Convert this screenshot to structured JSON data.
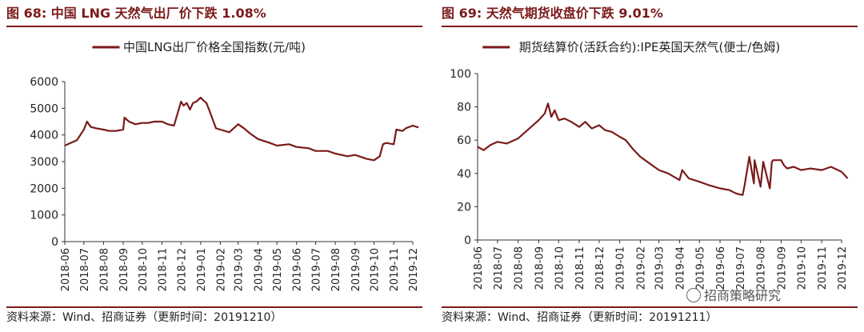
{
  "left": {
    "title": "图 68:  中国 LNG 天然气出厂价下跌 1.08%",
    "source": "资料来源：Wind、招商证券（更新时间：20191210）"
  },
  "right": {
    "title": "图 69:  天然气期货收盘价下跌 9.01%",
    "source": "资料来源：Wind、招商证券（更新时间：20191211）"
  },
  "watermark": {
    "text": "招商策略研究",
    "icon": "wechat-icon"
  },
  "chart_data": [
    {
      "type": "line",
      "legend": "中国LNG出厂价格全国指数(元/吨)",
      "legend_position": "top-center",
      "grid": false,
      "color": "#7b1a1a",
      "ylim": [
        0,
        6000
      ],
      "yticks": [
        0,
        1000,
        2000,
        3000,
        4000,
        5000,
        6000
      ],
      "xticks": [
        "2018-06",
        "2018-07",
        "2018-08",
        "2018-09",
        "2018-10",
        "2018-11",
        "2018-12",
        "2019-01",
        "2019-02",
        "2019-03",
        "2019-04",
        "2019-05",
        "2019-06",
        "2019-07",
        "2019-08",
        "2019-09",
        "2019-10",
        "2019-11",
        "2019-12"
      ],
      "x": [
        "2018-06-01",
        "2018-06-10",
        "2018-06-20",
        "2018-07-01",
        "2018-07-06",
        "2018-07-12",
        "2018-07-20",
        "2018-08-01",
        "2018-08-10",
        "2018-08-20",
        "2018-09-01",
        "2018-09-03",
        "2018-09-10",
        "2018-09-20",
        "2018-10-01",
        "2018-10-10",
        "2018-10-20",
        "2018-11-01",
        "2018-11-10",
        "2018-11-20",
        "2018-12-01",
        "2018-12-05",
        "2018-12-10",
        "2018-12-15",
        "2018-12-20",
        "2018-12-25",
        "2019-01-01",
        "2019-01-05",
        "2019-01-10",
        "2019-01-15",
        "2019-01-25",
        "2019-02-01",
        "2019-02-15",
        "2019-03-01",
        "2019-03-10",
        "2019-03-20",
        "2019-04-01",
        "2019-04-20",
        "2019-05-01",
        "2019-05-20",
        "2019-06-01",
        "2019-06-20",
        "2019-07-01",
        "2019-07-20",
        "2019-08-01",
        "2019-08-20",
        "2019-09-01",
        "2019-09-20",
        "2019-10-01",
        "2019-10-10",
        "2019-10-15",
        "2019-10-20",
        "2019-11-01",
        "2019-11-05",
        "2019-11-15",
        "2019-11-20",
        "2019-12-01",
        "2019-12-10"
      ],
      "series": [
        {
          "values": [
            3600,
            3700,
            3800,
            4200,
            4500,
            4300,
            4250,
            4200,
            4150,
            4150,
            4200,
            4650,
            4500,
            4400,
            4450,
            4450,
            4500,
            4500,
            4400,
            4350,
            5250,
            5100,
            5200,
            4950,
            5200,
            5250,
            5400,
            5300,
            5200,
            4900,
            4250,
            4200,
            4100,
            4400,
            4250,
            4050,
            3850,
            3700,
            3600,
            3650,
            3550,
            3500,
            3400,
            3400,
            3300,
            3200,
            3250,
            3100,
            3050,
            3200,
            3650,
            3700,
            3650,
            4200,
            4150,
            4250,
            4350,
            4280
          ]
        }
      ]
    },
    {
      "type": "line",
      "legend": "期货结算价(活跃合约):IPE英国天然气(便士/色姆)",
      "legend_position": "top-center",
      "grid": false,
      "color": "#7b1a1a",
      "ylim": [
        0,
        100
      ],
      "yticks": [
        0,
        20,
        40,
        60,
        80,
        100
      ],
      "xticks": [
        "2018-06",
        "2018-07",
        "2018-08",
        "2018-09",
        "2018-10",
        "2018-11",
        "2018-12",
        "2019-01",
        "2019-02",
        "2019-03",
        "2019-04",
        "2019-05",
        "2019-06",
        "2019-07",
        "2019-08",
        "2019-09",
        "2019-10",
        "2019-11",
        "2019-12"
      ],
      "x": [
        "2018-06-01",
        "2018-06-10",
        "2018-06-20",
        "2018-07-01",
        "2018-07-15",
        "2018-08-01",
        "2018-08-15",
        "2018-09-01",
        "2018-09-10",
        "2018-09-15",
        "2018-09-20",
        "2018-09-25",
        "2018-10-01",
        "2018-10-10",
        "2018-10-20",
        "2018-11-01",
        "2018-11-10",
        "2018-11-20",
        "2018-12-01",
        "2018-12-10",
        "2018-12-20",
        "2019-01-01",
        "2019-01-10",
        "2019-01-20",
        "2019-02-01",
        "2019-02-15",
        "2019-03-01",
        "2019-03-15",
        "2019-04-01",
        "2019-04-05",
        "2019-04-15",
        "2019-05-01",
        "2019-05-15",
        "2019-06-01",
        "2019-06-15",
        "2019-06-25",
        "2019-07-05",
        "2019-07-08",
        "2019-07-15",
        "2019-07-22",
        "2019-07-23",
        "2019-08-01",
        "2019-08-05",
        "2019-08-15",
        "2019-08-18",
        "2019-08-20",
        "2019-09-01",
        "2019-09-05",
        "2019-09-10",
        "2019-09-20",
        "2019-10-01",
        "2019-10-15",
        "2019-11-01",
        "2019-11-15",
        "2019-12-01",
        "2019-12-10"
      ],
      "series": [
        {
          "values": [
            56,
            54,
            57,
            59,
            58,
            61,
            66,
            72,
            76,
            82,
            74,
            78,
            72,
            73,
            71,
            68,
            71,
            67,
            69,
            66,
            65,
            62,
            60,
            55,
            50,
            46,
            42,
            40,
            36,
            42,
            37,
            35,
            33,
            31,
            30,
            28,
            27,
            33,
            50,
            34,
            48,
            32,
            47,
            31,
            47,
            48,
            48,
            45,
            43,
            44,
            42,
            43,
            42,
            44,
            41,
            37
          ]
        }
      ]
    }
  ]
}
